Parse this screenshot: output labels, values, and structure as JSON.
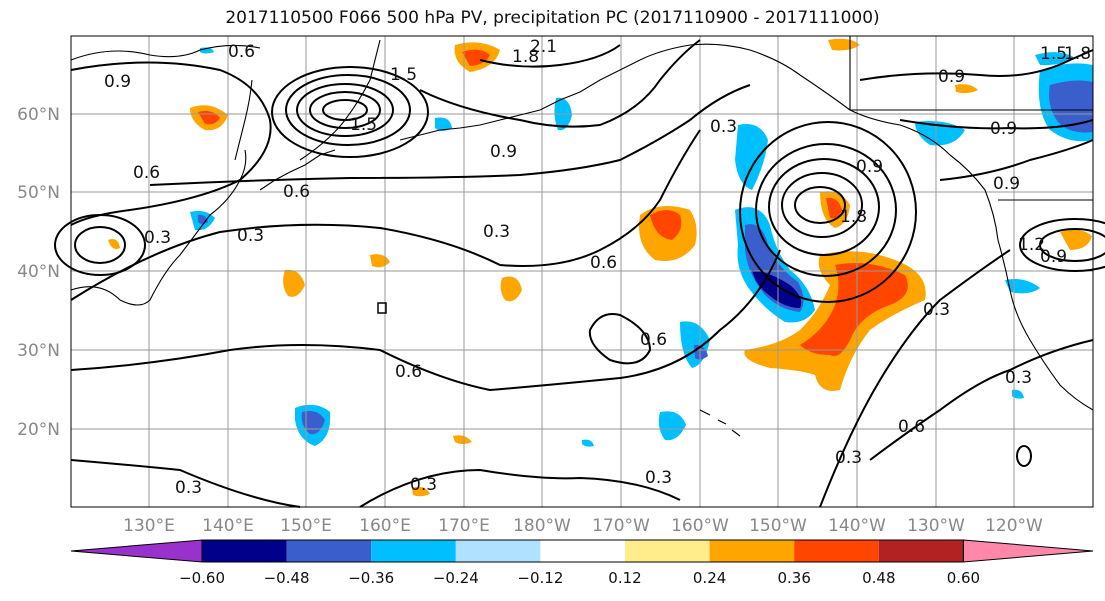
{
  "title": "2017110500 F066 500 hPa PV, precipitation PC (2017110900 - 2017111000)",
  "lat_labels": [
    "60°N",
    "50°N",
    "40°N",
    "30°N",
    "20°N"
  ],
  "lon_labels": [
    "130°E",
    "140°E",
    "150°E",
    "160°E",
    "170°E",
    "180°W",
    "170°W",
    "160°W",
    "150°W",
    "140°W",
    "130°W",
    "120°W"
  ],
  "colorbar": {
    "colors": [
      "#9932cc",
      "#00008b",
      "#3a5fcd",
      "#00bfff",
      "#b0e2ff",
      "#ffffff",
      "#ffec8b",
      "#ffa500",
      "#ff4500",
      "#b22222",
      "#ff88aa"
    ],
    "tick_labels": [
      "−0.60",
      "−0.48",
      "−0.36",
      "−0.24",
      "−0.12",
      "0.12",
      "0.24",
      "0.36",
      "0.48",
      "0.60"
    ]
  },
  "contour_labels": [
    "0.6",
    "0.9",
    "1.5",
    "2.1",
    "1.8",
    "1.5",
    "0.9",
    "0.6",
    "0.3",
    "0.6",
    "0.3",
    "0.3",
    "0.9",
    "0.3",
    "0.6",
    "0.6",
    "0.6",
    "0.3",
    "0.3",
    "0.3",
    "0.3",
    "0.6",
    "0.3",
    "0.3",
    "1.8",
    "0.9",
    "0.9",
    "1.5",
    "0.9",
    "1.2",
    "0.9",
    "1.8"
  ],
  "colors": {
    "contour": "#000000",
    "grid": "#999999",
    "coast": "#000000"
  }
}
